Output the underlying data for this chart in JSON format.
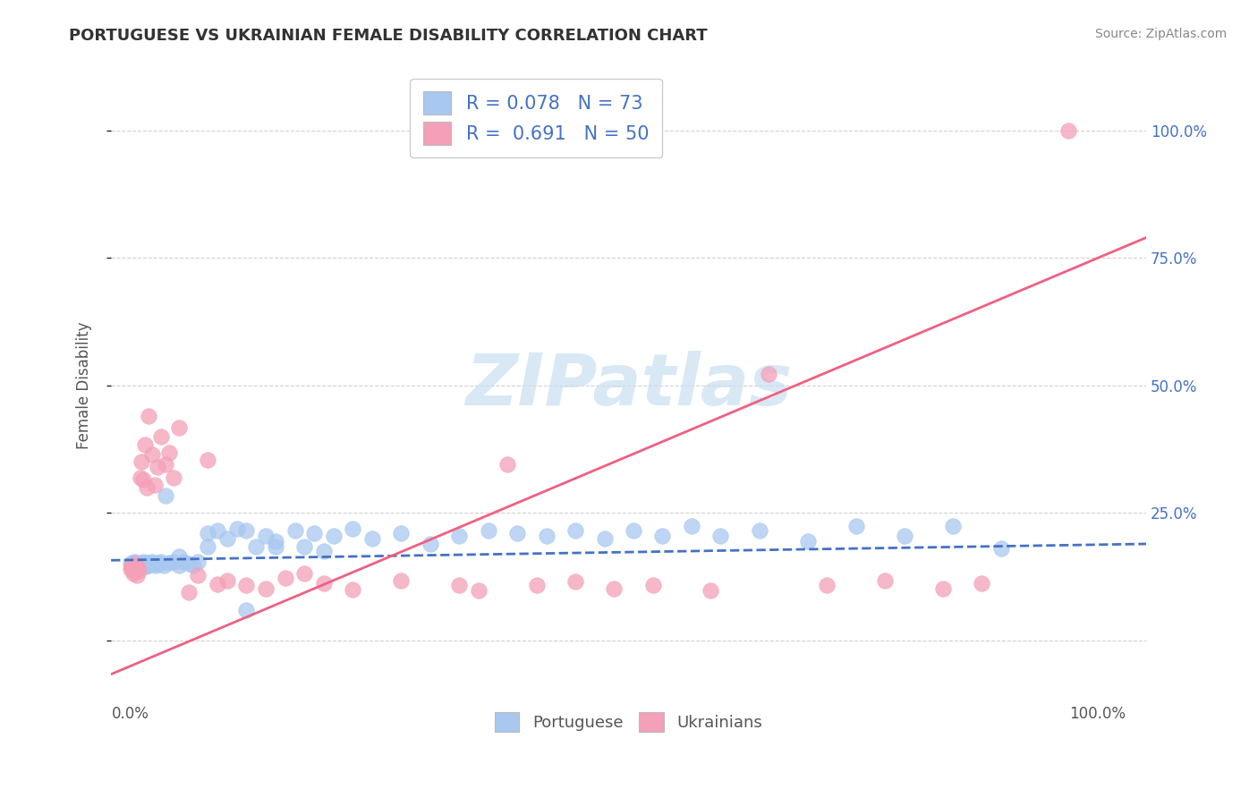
{
  "title": "PORTUGUESE VS UKRAINIAN FEMALE DISABILITY CORRELATION CHART",
  "source": "Source: ZipAtlas.com",
  "ylabel": "Female Disability",
  "portuguese_R": "0.078",
  "portuguese_N": "73",
  "ukrainian_R": "0.691",
  "ukrainian_N": "50",
  "portuguese_color": "#a8c8f0",
  "ukrainian_color": "#f4a0b8",
  "line_portuguese_color": "#4472c4",
  "line_ukrainian_color": "#f06080",
  "legend_text_color": "#4472c4",
  "watermark_color": "#c8dff0",
  "portuguese_points_x": [
    0.0,
    0.001,
    0.002,
    0.003,
    0.004,
    0.005,
    0.006,
    0.007,
    0.008,
    0.009,
    0.01,
    0.011,
    0.012,
    0.013,
    0.014,
    0.015,
    0.016,
    0.017,
    0.018,
    0.019,
    0.02,
    0.022,
    0.024,
    0.026,
    0.028,
    0.03,
    0.032,
    0.034,
    0.036,
    0.04,
    0.045,
    0.05,
    0.055,
    0.06,
    0.065,
    0.07,
    0.08,
    0.09,
    0.1,
    0.11,
    0.12,
    0.13,
    0.14,
    0.15,
    0.17,
    0.19,
    0.21,
    0.23,
    0.25,
    0.28,
    0.31,
    0.34,
    0.37,
    0.4,
    0.43,
    0.46,
    0.49,
    0.52,
    0.55,
    0.58,
    0.61,
    0.65,
    0.7,
    0.75,
    0.8,
    0.85,
    0.9,
    0.05,
    0.15,
    0.2,
    0.12,
    0.08,
    0.18
  ],
  "portuguese_points_y": [
    0.15,
    0.148,
    0.152,
    0.145,
    0.155,
    0.15,
    0.148,
    0.153,
    0.147,
    0.151,
    0.149,
    0.152,
    0.148,
    0.155,
    0.15,
    0.148,
    0.145,
    0.152,
    0.15,
    0.148,
    0.153,
    0.155,
    0.15,
    0.148,
    0.152,
    0.15,
    0.155,
    0.148,
    0.285,
    0.152,
    0.155,
    0.148,
    0.155,
    0.15,
    0.148,
    0.155,
    0.21,
    0.215,
    0.2,
    0.22,
    0.215,
    0.185,
    0.205,
    0.195,
    0.215,
    0.21,
    0.205,
    0.22,
    0.2,
    0.21,
    0.19,
    0.205,
    0.215,
    0.21,
    0.205,
    0.215,
    0.2,
    0.215,
    0.205,
    0.225,
    0.205,
    0.215,
    0.195,
    0.225,
    0.205,
    0.225,
    0.18,
    0.165,
    0.185,
    0.175,
    0.06,
    0.185,
    0.185
  ],
  "ukrainian_points_x": [
    0.0,
    0.001,
    0.002,
    0.003,
    0.004,
    0.005,
    0.006,
    0.007,
    0.008,
    0.009,
    0.01,
    0.011,
    0.013,
    0.015,
    0.017,
    0.019,
    0.022,
    0.025,
    0.028,
    0.032,
    0.036,
    0.04,
    0.045,
    0.05,
    0.06,
    0.07,
    0.08,
    0.09,
    0.1,
    0.12,
    0.14,
    0.16,
    0.18,
    0.2,
    0.23,
    0.28,
    0.34,
    0.39,
    0.46,
    0.54,
    0.6,
    0.66,
    0.72,
    0.78,
    0.84,
    0.88,
    0.36,
    0.42,
    0.5,
    0.97
  ],
  "ukrainian_points_y": [
    0.14,
    0.145,
    0.138,
    0.132,
    0.143,
    0.135,
    0.15,
    0.128,
    0.142,
    0.136,
    0.32,
    0.35,
    0.315,
    0.385,
    0.3,
    0.44,
    0.365,
    0.305,
    0.34,
    0.4,
    0.345,
    0.368,
    0.32,
    0.418,
    0.095,
    0.128,
    0.355,
    0.11,
    0.118,
    0.108,
    0.102,
    0.122,
    0.132,
    0.112,
    0.1,
    0.118,
    0.108,
    0.345,
    0.115,
    0.108,
    0.098,
    0.522,
    0.108,
    0.118,
    0.102,
    0.112,
    0.098,
    0.108,
    0.102,
    1.0
  ],
  "xlim": [
    -0.02,
    1.05
  ],
  "ylim": [
    -0.12,
    1.12
  ],
  "yticks": [
    0.0,
    0.25,
    0.5,
    0.75,
    1.0
  ],
  "ytick_labels_right": [
    "",
    "25.0%",
    "50.0%",
    "75.0%",
    "100.0%"
  ],
  "xticks": [
    0.0,
    1.0
  ],
  "xtick_labels": [
    "0.0%",
    "100.0%"
  ],
  "line_portuguese_intercept": 0.158,
  "line_portuguese_slope": 0.03,
  "line_ukrainian_intercept": -0.05,
  "line_ukrainian_slope": 0.8
}
